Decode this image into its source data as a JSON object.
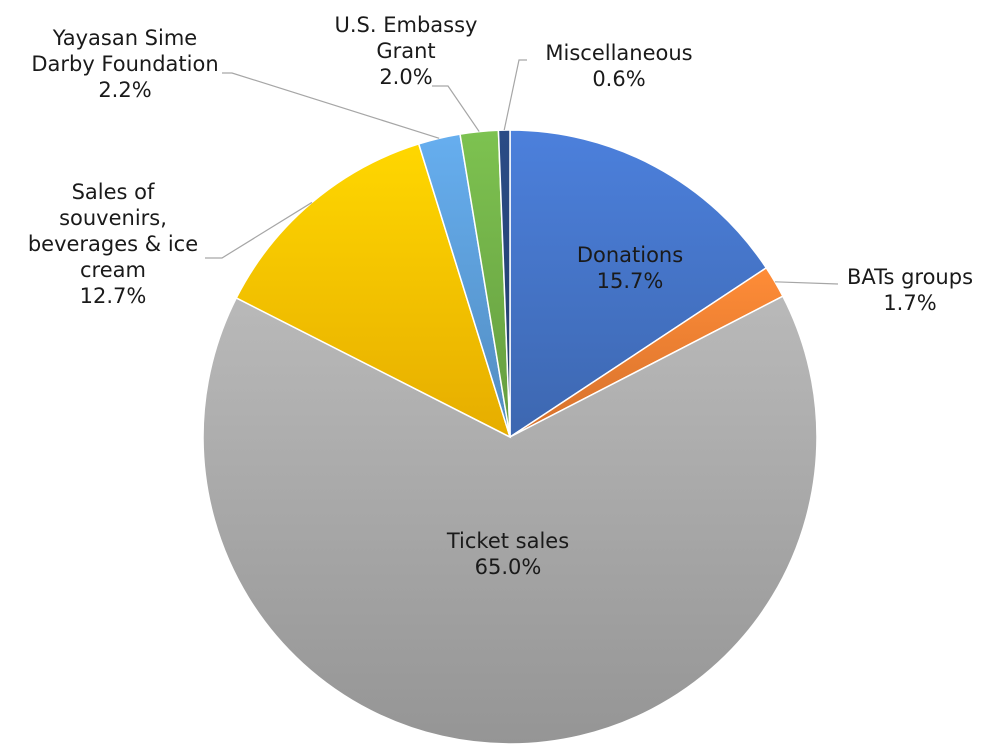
{
  "chart_data": {
    "type": "pie",
    "title": "",
    "slices": [
      {
        "label_lines": [
          "Donations"
        ],
        "value": 15.7,
        "value_label": "15.7%",
        "color": "#4472C4"
      },
      {
        "label_lines": [
          "BATs groups"
        ],
        "value": 1.7,
        "value_label": "1.7%",
        "color": "#ED7D31"
      },
      {
        "label_lines": [
          "Ticket sales"
        ],
        "value": 65.0,
        "value_label": "65.0%",
        "color": "#A5A5A5"
      },
      {
        "label_lines": [
          "Sales of",
          "souvenirs,",
          "beverages & ice",
          "cream"
        ],
        "value": 12.7,
        "value_label": "12.7%",
        "color": "#FFC000"
      },
      {
        "label_lines": [
          "Yayasan Sime",
          "Darby Foundation"
        ],
        "value": 2.2,
        "value_label": "2.2%",
        "color": "#5B9BD5"
      },
      {
        "label_lines": [
          "U.S. Embassy",
          "Grant"
        ],
        "value": 2.0,
        "value_label": "2.0%",
        "color": "#70AD47"
      },
      {
        "label_lines": [
          "Miscellaneous"
        ],
        "value": 0.6,
        "value_label": "0.6%",
        "color": "#264478"
      }
    ]
  }
}
